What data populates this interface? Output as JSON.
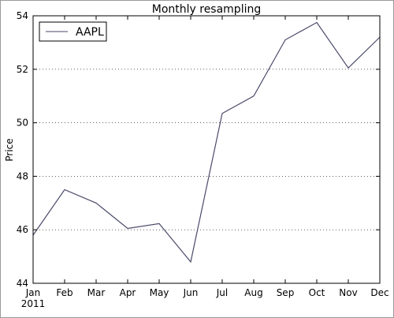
{
  "chart_data": {
    "type": "line",
    "title": "Monthly resampling",
    "xlabel": "",
    "ylabel": "Price",
    "categories": [
      "Jan",
      "Feb",
      "Mar",
      "Apr",
      "May",
      "Jun",
      "Jul",
      "Aug",
      "Sep",
      "Oct",
      "Nov",
      "Dec"
    ],
    "x_sublabel": "2011",
    "series": [
      {
        "name": "AAPL",
        "color": "#4a4a6a",
        "values": [
          45.8,
          47.5,
          47.0,
          46.05,
          46.23,
          44.8,
          50.35,
          51.0,
          53.1,
          53.75,
          52.05,
          53.2
        ]
      }
    ],
    "yticks": [
      44,
      46,
      48,
      50,
      52,
      54
    ],
    "ylim": [
      44,
      54
    ],
    "grid": "horizontal dotted",
    "legend": "top-left"
  }
}
